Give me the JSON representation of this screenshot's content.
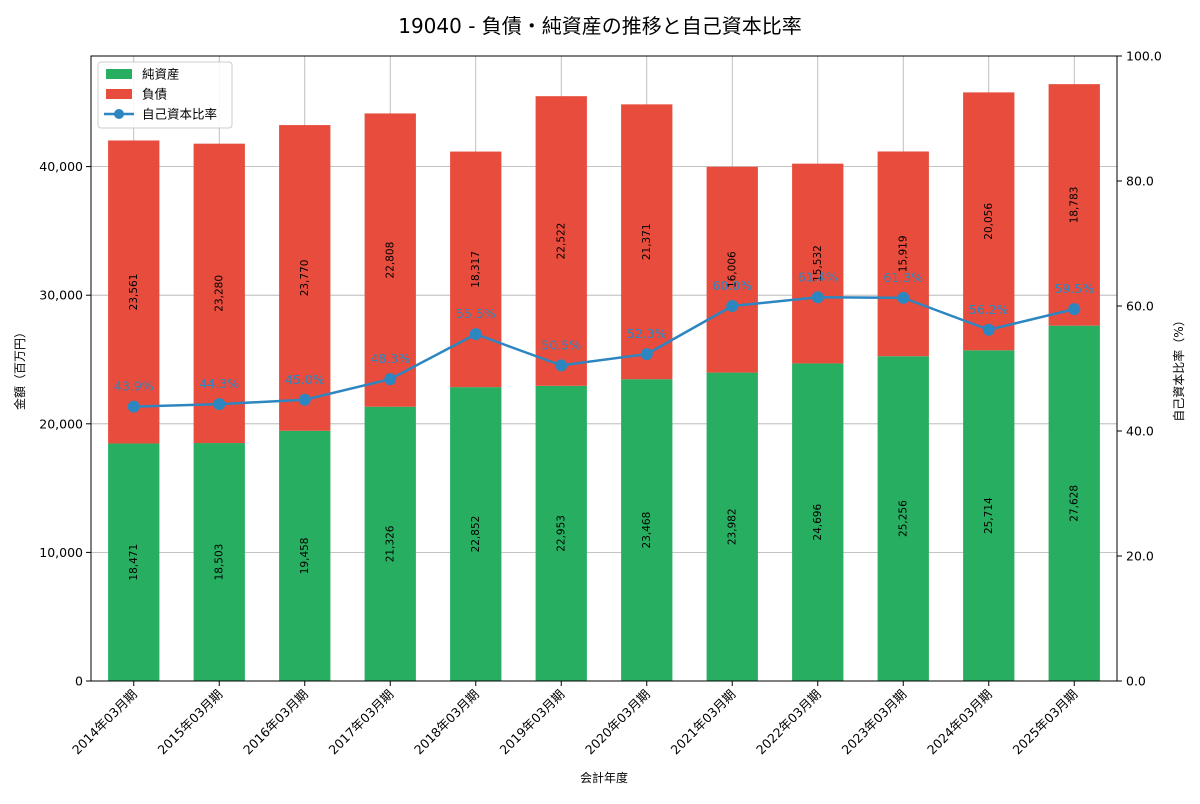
{
  "chart_data": {
    "type": "bar",
    "stacked": true,
    "title": "19040 - 負債・純資産の推移と自己資本比率",
    "xlabel": "会計年度",
    "ylabel": "金額（百万円）",
    "y2label": "自己資本比率（%）",
    "categories": [
      "2014年03月期",
      "2015年03月期",
      "2016年03月期",
      "2017年03月期",
      "2018年03月期",
      "2019年03月期",
      "2020年03月期",
      "2021年03月期",
      "2022年03月期",
      "2023年03月期",
      "2024年03月期",
      "2025年03月期"
    ],
    "series": [
      {
        "name": "純資産",
        "type": "bar",
        "color": "#27ae60",
        "values": [
          18471,
          18503,
          19458,
          21326,
          22852,
          22953,
          23468,
          23982,
          24696,
          25256,
          25714,
          27628
        ]
      },
      {
        "name": "負債",
        "type": "bar",
        "color": "#e74c3c",
        "values": [
          23561,
          23280,
          23770,
          22808,
          18317,
          22522,
          21371,
          16006,
          15532,
          15919,
          20056,
          18783
        ]
      },
      {
        "name": "自己資本比率",
        "type": "line",
        "color": "#2e86c1",
        "axis": "right",
        "values": [
          43.9,
          44.3,
          45.0,
          48.3,
          55.5,
          50.5,
          52.3,
          60.0,
          61.4,
          61.3,
          56.2,
          59.5
        ]
      }
    ],
    "bar_labels": {
      "純資産": [
        "18,471",
        "18,503",
        "19,458",
        "21,326",
        "22,852",
        "22,953",
        "23,468",
        "23,982",
        "24,696",
        "25,256",
        "25,714",
        "27,628"
      ],
      "負債": [
        "23,561",
        "23,280",
        "23,770",
        "22,808",
        "18,317",
        "22,522",
        "21,371",
        "16,006",
        "15,532",
        "15,919",
        "20,056",
        "18,783"
      ]
    },
    "line_labels": [
      "43.9%",
      "44.3%",
      "45.0%",
      "48.3%",
      "55.5%",
      "50.5%",
      "52.3%",
      "60.0%",
      "61.4%",
      "61.3%",
      "56.2%",
      "59.5%"
    ],
    "ylim": [
      0,
      48600
    ],
    "yticks": [
      0,
      10000,
      20000,
      30000,
      40000
    ],
    "ytick_labels": [
      "0",
      "10,000",
      "20,000",
      "30,000",
      "40,000"
    ],
    "y2lim": [
      0,
      100
    ],
    "y2ticks": [
      0,
      20,
      40,
      60,
      80,
      100
    ],
    "y2tick_labels": [
      "0.0",
      "20.0",
      "40.0",
      "60.0",
      "80.0",
      "100.0"
    ],
    "grid": true,
    "legend": {
      "position": "top-left",
      "entries": [
        "純資産",
        "負債",
        "自己資本比率"
      ]
    }
  }
}
